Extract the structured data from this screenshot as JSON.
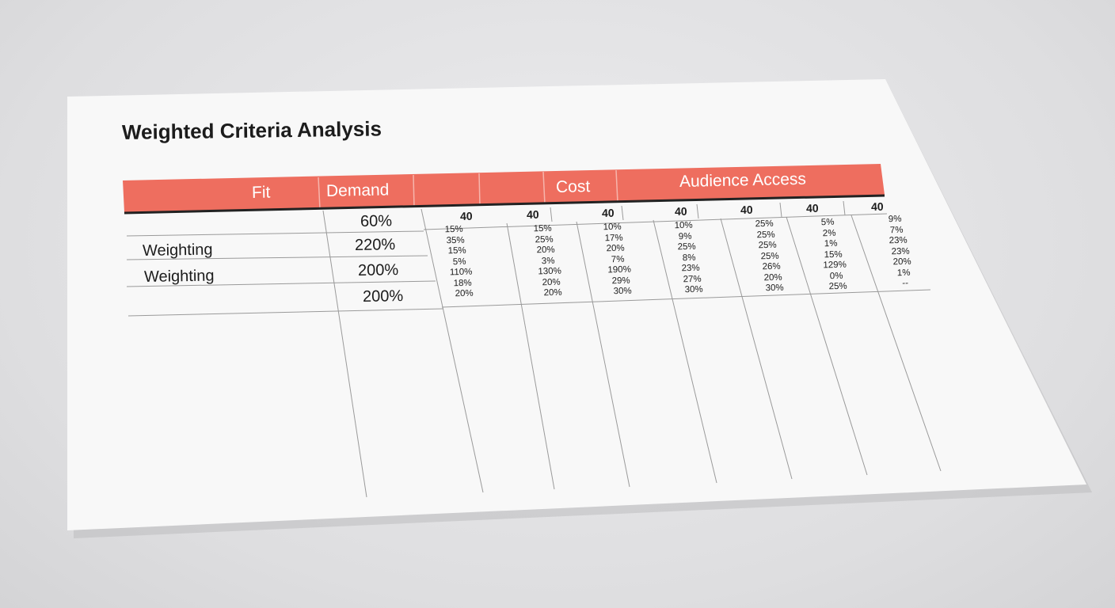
{
  "document": {
    "title": "Weighted Criteria Analysis",
    "accent_color": "#ee6e5f",
    "header": [
      "Fit",
      "Demand",
      "",
      "",
      "Cost",
      "Audience Access"
    ],
    "left_rows": [
      {
        "label": "",
        "value": "60%"
      },
      {
        "label": "Weighting",
        "value": "220%"
      },
      {
        "label": "Weighting",
        "value": "200%"
      },
      {
        "label": "",
        "value": "200%"
      }
    ],
    "column_weights": [
      "40",
      "40",
      "40",
      "40",
      "40",
      "40",
      "40"
    ],
    "columns": [
      [
        "15%",
        "35%",
        "15%",
        "5%",
        "110%",
        "18%",
        "20%"
      ],
      [
        "15%",
        "25%",
        "20%",
        "3%",
        "130%",
        "20%",
        "20%"
      ],
      [
        "10%",
        "17%",
        "20%",
        "7%",
        "190%",
        "29%",
        "30%"
      ],
      [
        "10%",
        "9%",
        "25%",
        "8%",
        "23%",
        "27%",
        "30%"
      ],
      [
        "25%",
        "25%",
        "25%",
        "25%",
        "26%",
        "20%",
        "30%"
      ],
      [
        "5%",
        "2%",
        "1%",
        "15%",
        "129%",
        "0%",
        "25%"
      ],
      [
        "9%",
        "7%",
        "23%",
        "23%",
        "20%",
        "1%",
        "--"
      ]
    ]
  }
}
